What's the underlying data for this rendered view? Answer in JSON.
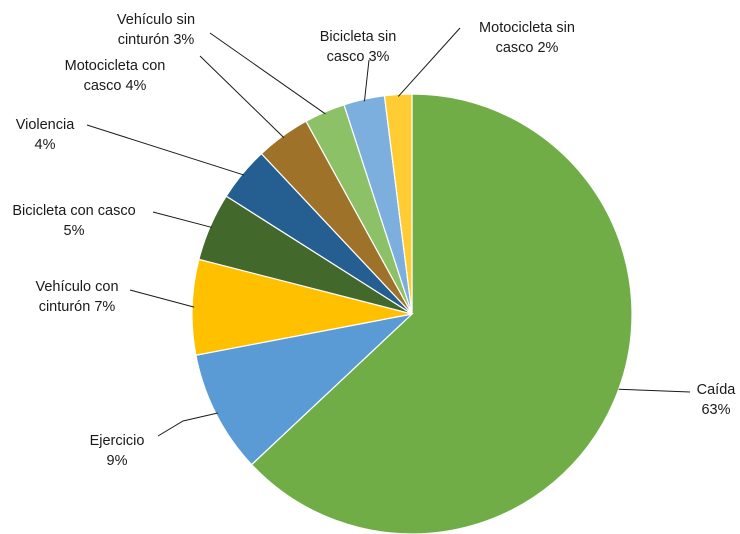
{
  "chart_data": {
    "type": "pie",
    "title": "",
    "start_angle_deg": 0,
    "direction": "clockwise",
    "slices": [
      {
        "label": [
          "Caída",
          "63%"
        ],
        "value": 63,
        "color": "#70AD47"
      },
      {
        "label": [
          "Ejercicio",
          "9%"
        ],
        "value": 9,
        "color": "#5B9BD5"
      },
      {
        "label": [
          "Vehículo con",
          "cinturón 7%"
        ],
        "value": 7,
        "color": "#FFC000"
      },
      {
        "label": [
          "Bicicleta con casco",
          "5%"
        ],
        "value": 5,
        "color": "#43682B"
      },
      {
        "label": [
          "Violencia",
          "4%"
        ],
        "value": 4,
        "color": "#255E91"
      },
      {
        "label": [
          "Motocicleta con",
          "casco 4%"
        ],
        "value": 4,
        "color": "#9E7229"
      },
      {
        "label": [
          "Vehículo sin",
          "cinturón 3%"
        ],
        "value": 3,
        "color": "#8CC168"
      },
      {
        "label": [
          "Bicicleta sin",
          "casco 3%"
        ],
        "value": 3,
        "color": "#7CAFDD"
      },
      {
        "label": [
          "Motocicleta sin",
          "casco 2%"
        ],
        "value": 2,
        "color": "#FFCD33"
      }
    ],
    "legend": "none"
  }
}
